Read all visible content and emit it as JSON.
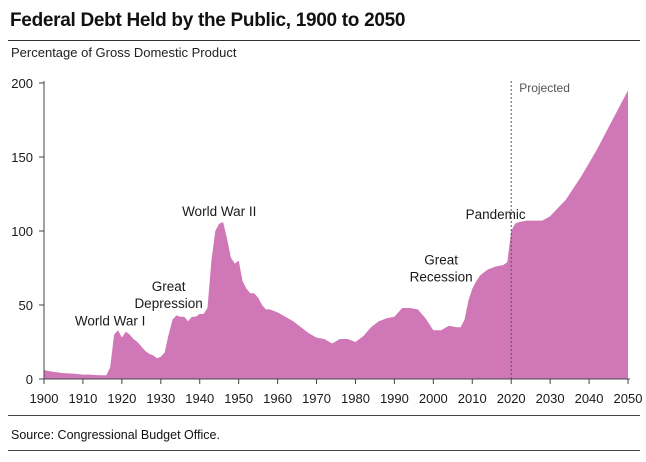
{
  "title": "Federal Debt Held by the Public, 1900 to 2050",
  "subtitle": "Percentage of Gross Domestic Product",
  "source": "Source: Congressional Budget Office.",
  "projected_label": "Projected",
  "colors": {
    "area": "#cf77b7",
    "axis": "#444444",
    "text": "#1a1a1a"
  },
  "chart_data": {
    "type": "area",
    "title": "Federal Debt Held by the Public, 1900 to 2050",
    "ylabel": "Percentage of Gross Domestic Product",
    "xlim": [
      1900,
      2050
    ],
    "ylim": [
      0,
      200
    ],
    "xticks": [
      1900,
      1910,
      1920,
      1930,
      1940,
      1950,
      1960,
      1970,
      1980,
      1990,
      2000,
      2010,
      2020,
      2030,
      2040,
      2050
    ],
    "yticks": [
      0,
      50,
      100,
      150,
      200
    ],
    "projection_start": 2020,
    "grid": false,
    "x": [
      1900,
      1902,
      1905,
      1908,
      1910,
      1912,
      1914,
      1916,
      1917,
      1918,
      1919,
      1920,
      1921,
      1922,
      1923,
      1924,
      1925,
      1926,
      1927,
      1928,
      1929,
      1930,
      1931,
      1932,
      1933,
      1934,
      1935,
      1936,
      1937,
      1938,
      1939,
      1940,
      1941,
      1942,
      1943,
      1944,
      1945,
      1946,
      1947,
      1948,
      1949,
      1950,
      1951,
      1952,
      1953,
      1954,
      1955,
      1956,
      1957,
      1958,
      1959,
      1960,
      1962,
      1964,
      1966,
      1968,
      1970,
      1972,
      1974,
      1976,
      1978,
      1980,
      1982,
      1984,
      1986,
      1988,
      1990,
      1992,
      1994,
      1996,
      1998,
      2000,
      2002,
      2004,
      2006,
      2007,
      2008,
      2009,
      2010,
      2011,
      2012,
      2013,
      2014,
      2016,
      2018,
      2019,
      2020,
      2021,
      2022,
      2024,
      2026,
      2028,
      2030,
      2034,
      2038,
      2042,
      2046,
      2050
    ],
    "values": [
      6,
      5,
      4,
      3.5,
      3,
      3,
      2.5,
      2.5,
      8,
      30,
      33,
      28,
      32,
      30,
      27,
      25,
      22,
      19,
      17,
      16,
      14,
      15,
      18,
      30,
      40,
      43,
      42,
      42,
      39,
      42,
      42,
      44,
      44,
      48,
      80,
      100,
      105,
      106,
      95,
      82,
      78,
      80,
      66,
      61,
      58,
      58,
      55,
      50,
      47,
      47,
      46,
      45,
      42,
      39,
      35,
      31,
      28,
      27,
      24,
      27,
      27,
      25,
      29,
      35,
      39,
      41,
      42,
      48,
      48,
      47,
      41,
      33,
      33,
      36,
      35,
      35,
      40,
      53,
      61,
      66,
      70,
      72,
      74,
      76,
      77,
      79,
      100,
      105,
      106,
      107,
      107,
      107,
      110,
      121,
      137,
      155,
      175,
      195
    ],
    "annotations": [
      {
        "text": [
          "World War I"
        ],
        "x": 1917,
        "y": 36
      },
      {
        "text": [
          "Great",
          "Depression"
        ],
        "x": 1932,
        "y": 48
      },
      {
        "text": [
          "World War II"
        ],
        "x": 1945,
        "y": 110
      },
      {
        "text": [
          "Great",
          "Recession"
        ],
        "x": 2002,
        "y": 66
      },
      {
        "text": [
          "Pandemic"
        ],
        "x": 2016,
        "y": 108
      }
    ]
  }
}
